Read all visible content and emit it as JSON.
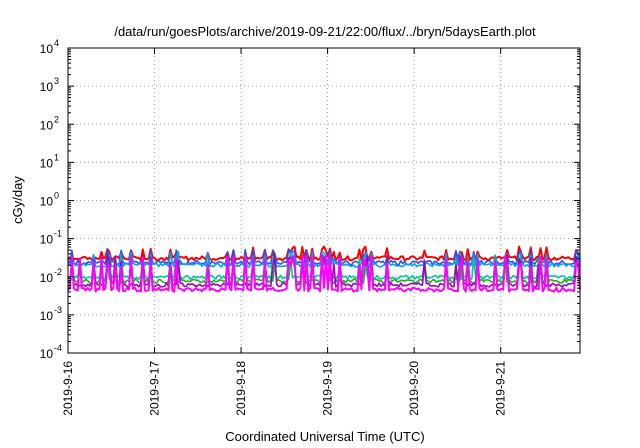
{
  "chart_data": {
    "type": "line",
    "title": "/data/run/goesPlots/archive/2019-09-21/22:00/flux/../bryn/5daysEarth.plot",
    "xlabel": "Coordinated Universal Time (UTC)",
    "ylabel": "cGy/day",
    "y_scale": "log",
    "ylim": [
      0.0001,
      10000
    ],
    "xlim": [
      "2019-09-16 00:00",
      "2019-09-21 22:00"
    ],
    "x_ticks": [
      "2019-9-16",
      "2019-9-17",
      "2019-9-18",
      "2019-9-19",
      "2019-9-20",
      "2019-9-21"
    ],
    "y_ticks": [
      {
        "base": "10",
        "exp": "4",
        "value": 10000
      },
      {
        "base": "10",
        "exp": "3",
        "value": 1000
      },
      {
        "base": "10",
        "exp": "2",
        "value": 100
      },
      {
        "base": "10",
        "exp": "1",
        "value": 10
      },
      {
        "base": "10",
        "exp": "0",
        "value": 1
      },
      {
        "base": "10",
        "exp": "-1",
        "value": 0.1
      },
      {
        "base": "10",
        "exp": "-2",
        "value": 0.01
      },
      {
        "base": "10",
        "exp": "-3",
        "value": 0.001
      },
      {
        "base": "10",
        "exp": "-4",
        "value": 0.0001
      }
    ],
    "grid": true,
    "series": [
      {
        "color": "#ff0000",
        "baseline": 0.03,
        "spikes": 0.055
      },
      {
        "color": "#3050e0",
        "baseline": 0.023,
        "spikes": 0.045
      },
      {
        "color": "#00a0ff",
        "baseline": 0.02,
        "spikes": 0.04
      },
      {
        "color": "#00c8a0",
        "baseline": 0.0095,
        "spikes": 0.03
      },
      {
        "color": "#20b020",
        "baseline": 0.0075,
        "spikes": 0.025
      },
      {
        "color": "#a000c0",
        "baseline": 0.006,
        "spikes": 0.03
      },
      {
        "color": "#ff00ff",
        "baseline": 0.0045,
        "spikes": 0.03
      }
    ]
  }
}
